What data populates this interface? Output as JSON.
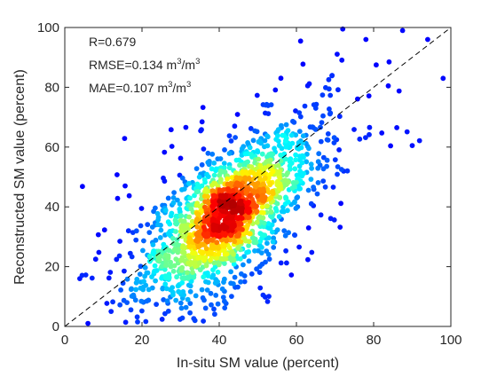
{
  "chart_data": {
    "type": "scatter",
    "title": "",
    "xlabel": "In-situ SM value (percent)",
    "ylabel": "Reconstructed SM value (percent)",
    "xlim": [
      0,
      100
    ],
    "ylim": [
      0,
      100
    ],
    "xticks": [
      "0",
      "20",
      "40",
      "60",
      "80",
      "100"
    ],
    "yticks": [
      "0",
      "20",
      "40",
      "60",
      "80",
      "100"
    ],
    "grid": false,
    "legend": "none",
    "colormap": "jet (point density: blue = low, red = high)",
    "reference_line": {
      "type": "1:1",
      "style": "dashed",
      "color": "#000000",
      "from": [
        0,
        0
      ],
      "to": [
        100,
        100
      ]
    },
    "stats": {
      "r_text": "R=0.679",
      "rmse_text": "RMSE=0.134 m",
      "rmse_unit_sup": "3",
      "rmse_unit_mid": "/m",
      "rmse_unit_sup2": "3",
      "mae_text": "MAE=0.107 m",
      "mae_unit_sup": "3",
      "mae_unit_mid": "/m",
      "mae_unit_sup2": "3"
    },
    "distribution": {
      "center": [
        42,
        37
      ],
      "approx_points": 1700
    },
    "outliers": [
      {
        "x": 6,
        "y": 1
      },
      {
        "x": 8,
        "y": 22.5
      },
      {
        "x": 12,
        "y": 5
      },
      {
        "x": 16.5,
        "y": 32
      },
      {
        "x": 22,
        "y": 23.5
      },
      {
        "x": 23,
        "y": 38.5
      },
      {
        "x": 72,
        "y": 99.5
      },
      {
        "x": 87.5,
        "y": 99
      },
      {
        "x": 94,
        "y": 96
      },
      {
        "x": 98,
        "y": 83
      },
      {
        "x": 90,
        "y": 60.5
      },
      {
        "x": 86,
        "y": 66.5
      },
      {
        "x": 84,
        "y": 88.5
      },
      {
        "x": 78,
        "y": 96
      }
    ]
  },
  "colors": {
    "axis": "#262626",
    "background": "#ffffff",
    "density_low": "#0000c8",
    "density_high": "#8b0000"
  }
}
